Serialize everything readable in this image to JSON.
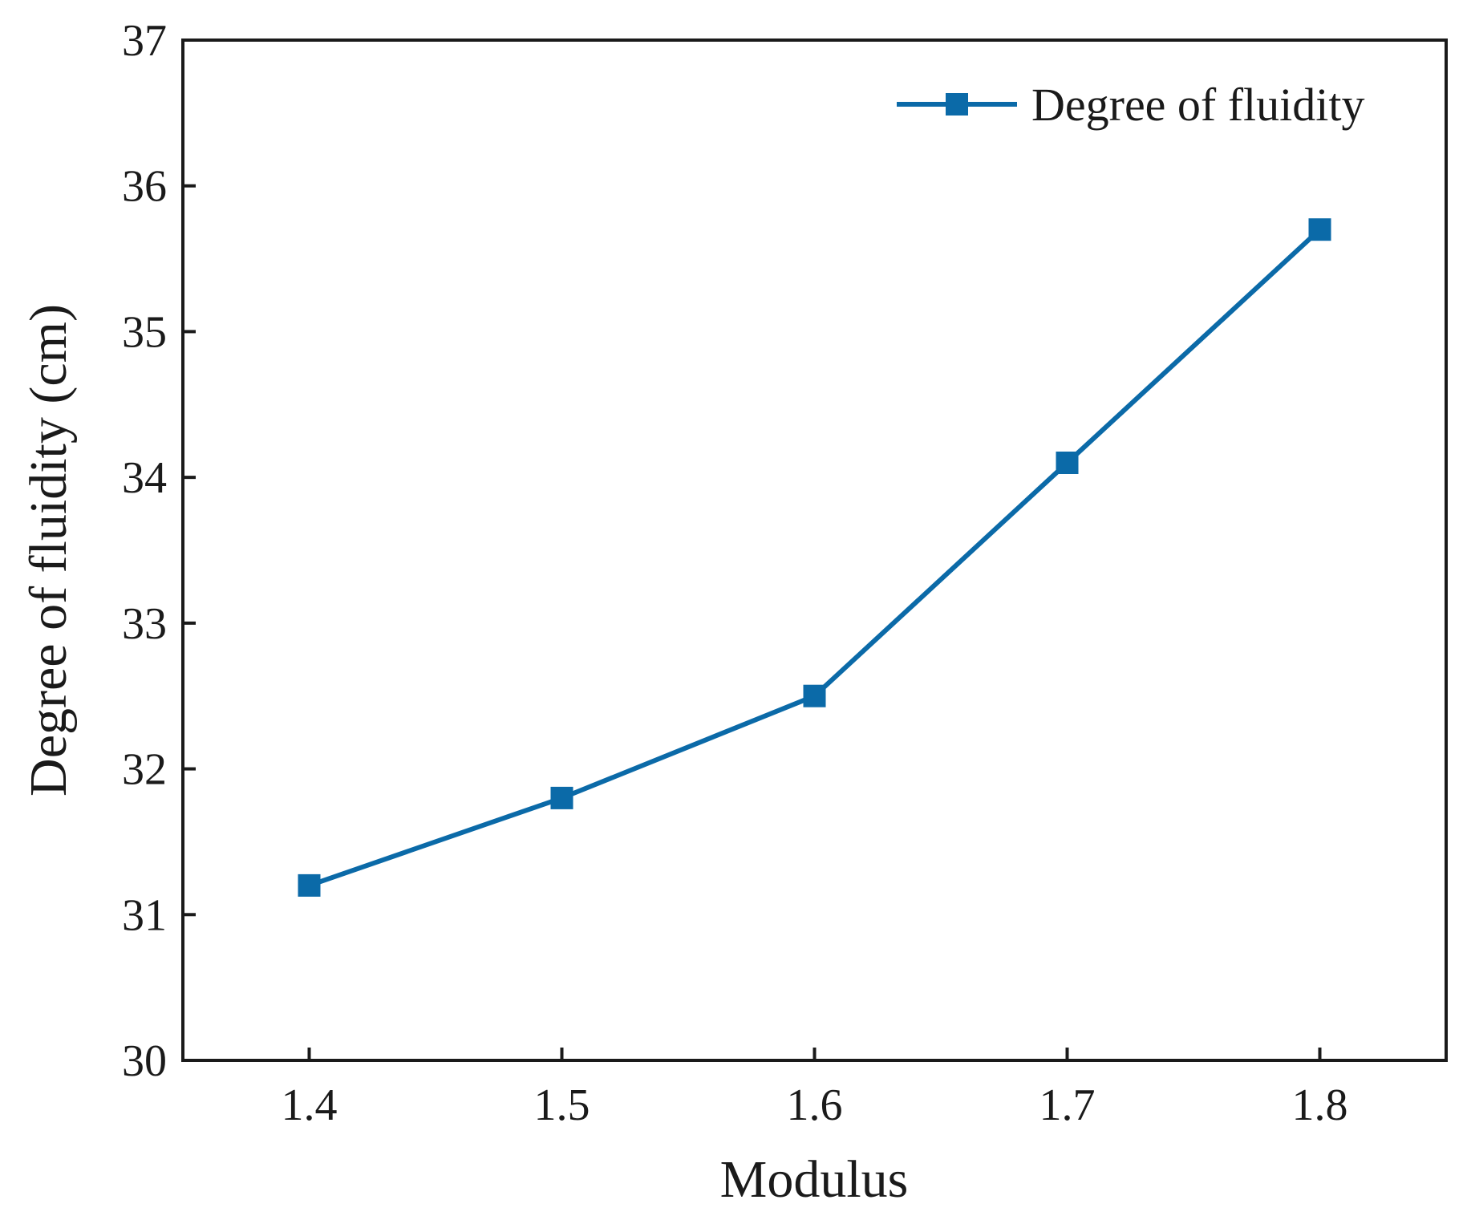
{
  "chart_data": {
    "type": "line",
    "title": "",
    "xlabel": "Modulus",
    "ylabel": "Degree of fluidity (cm)",
    "x": [
      1.4,
      1.5,
      1.6,
      1.7,
      1.8
    ],
    "x_tick_labels": [
      "1.4",
      "1.5",
      "1.6",
      "1.7",
      "1.8"
    ],
    "y_tick_labels": [
      "30",
      "31",
      "32",
      "33",
      "34",
      "35",
      "36",
      "37"
    ],
    "xlim": [
      1.35,
      1.85
    ],
    "ylim": [
      30,
      37
    ],
    "grid": false,
    "legend_position": "top-right",
    "series": [
      {
        "name": "Degree of fluidity",
        "color": "#0b6aa8",
        "marker": "square",
        "values": [
          31.2,
          31.8,
          32.5,
          34.1,
          35.7
        ]
      }
    ]
  }
}
